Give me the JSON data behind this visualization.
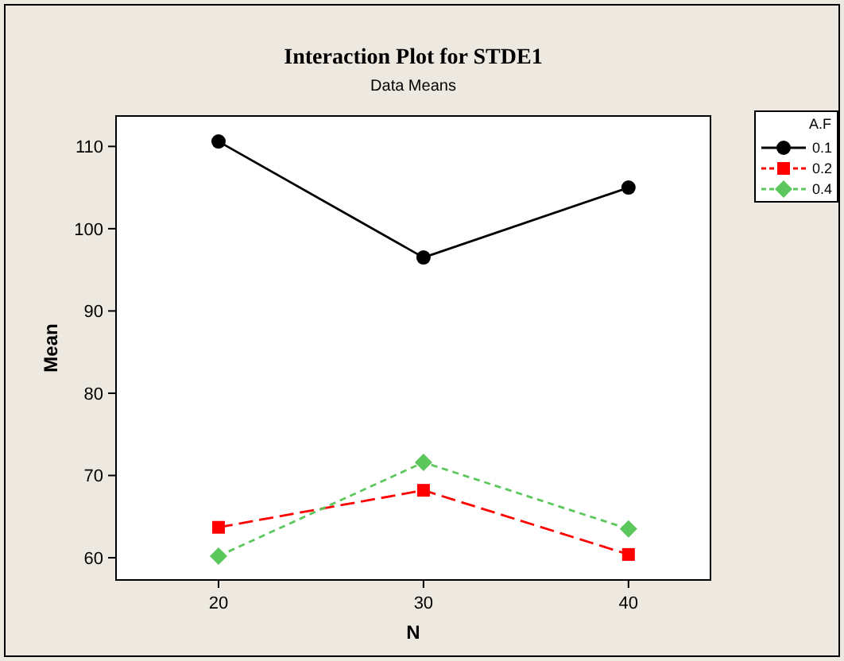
{
  "chart_data": {
    "type": "line",
    "title": "Interaction Plot for STDE1",
    "subtitle": "Data Means",
    "xlabel": "N",
    "ylabel": "Mean",
    "legend_title": "A.F",
    "x": [
      20,
      30,
      40
    ],
    "xlim": [
      15,
      44
    ],
    "xticks": [
      20,
      30,
      40
    ],
    "ylim": [
      57.3,
      113.7
    ],
    "yticks": [
      60,
      70,
      80,
      90,
      100,
      110
    ],
    "series": [
      {
        "name": "0.1",
        "color": "#000000",
        "values": [
          110.6,
          96.5,
          105.0
        ],
        "marker": "circle",
        "line_style": "solid"
      },
      {
        "name": "0.2",
        "color": "#ff0000",
        "values": [
          63.7,
          68.2,
          60.4
        ],
        "marker": "square",
        "line_style": "dashed"
      },
      {
        "name": "0.4",
        "color": "#5cc75c",
        "values": [
          60.2,
          71.6,
          63.5
        ],
        "marker": "diamond",
        "line_style": "dotted"
      }
    ],
    "grid": false,
    "legend": "top right"
  }
}
